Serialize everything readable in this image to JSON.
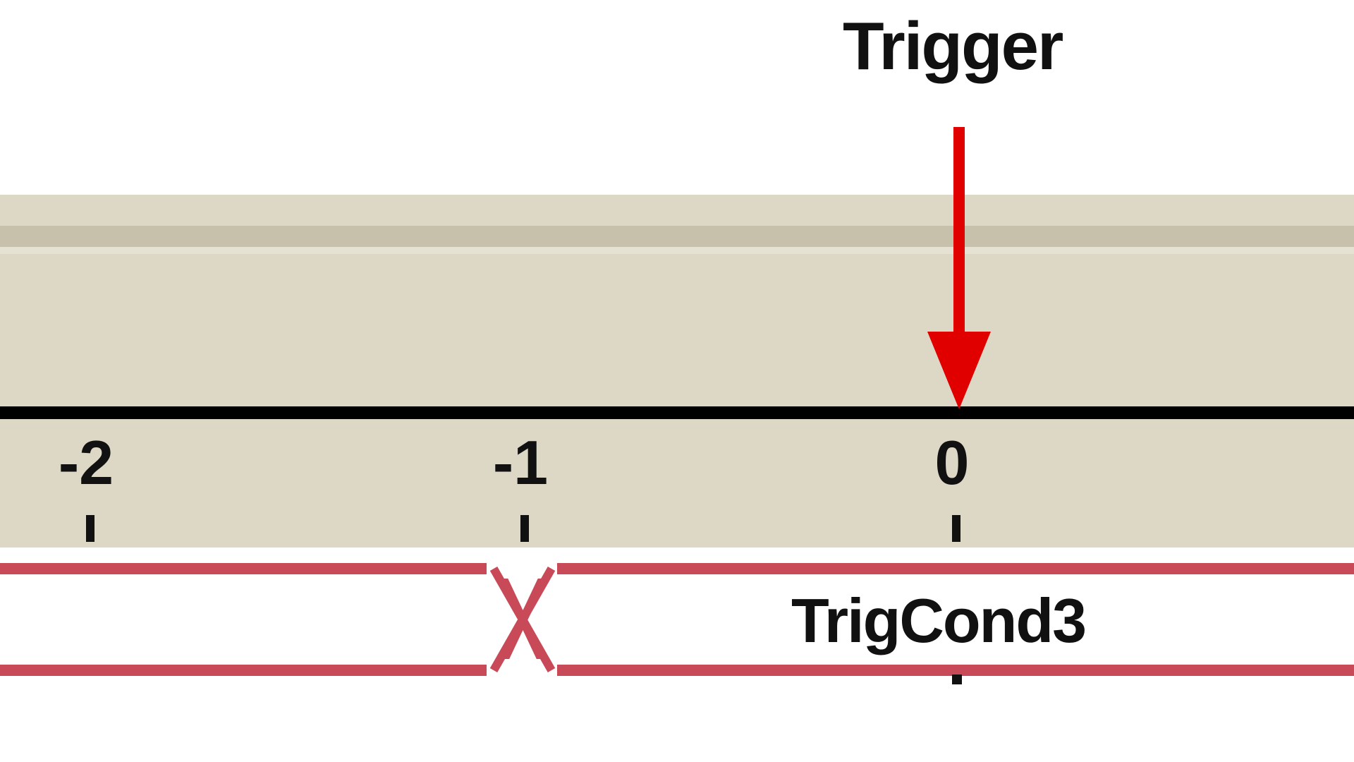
{
  "trigger": {
    "label": "Trigger",
    "arrow_color": "#e00000"
  },
  "ruler": {
    "ticks": [
      {
        "label": "-2"
      },
      {
        "label": "-1"
      },
      {
        "label": "0"
      }
    ]
  },
  "signal": {
    "label": "TrigCond3",
    "line_color": "#c84a58",
    "transition_marker": "x-transition-icon"
  }
}
